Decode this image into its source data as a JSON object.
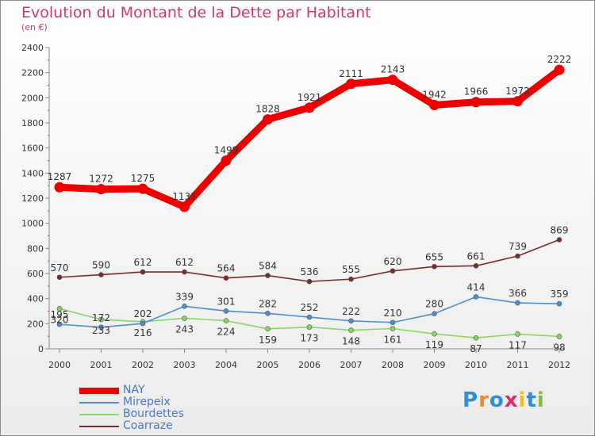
{
  "title": "Evolution du Montant de la Dette par Habitant",
  "subtitle": "(en €)",
  "chart_data": {
    "type": "line",
    "title": "Evolution du Montant de la Dette par Habitant",
    "ylabel": "(en €)",
    "xlabel": "",
    "ylim": [
      0,
      2400
    ],
    "yticks": [
      0,
      200,
      400,
      600,
      800,
      1000,
      1200,
      1400,
      1600,
      1800,
      2000,
      2200,
      2400
    ],
    "categories": [
      "2000",
      "2001",
      "2002",
      "2003",
      "2004",
      "2005",
      "2006",
      "2007",
      "2008",
      "2009",
      "2010",
      "2011",
      "2012"
    ],
    "grid": false,
    "legend_position": "bottom-left",
    "series": [
      {
        "name": "NAY",
        "color": "#ee0000",
        "values": [
          1287,
          1272,
          1275,
          1131,
          1499,
          1828,
          1921,
          2111,
          2143,
          1942,
          1966,
          1972,
          2222
        ]
      },
      {
        "name": "Mirepeix",
        "color": "#4f8fd0",
        "values": [
          195,
          172,
          202,
          339,
          301,
          282,
          252,
          222,
          210,
          280,
          414,
          366,
          359
        ]
      },
      {
        "name": "Bourdettes",
        "color": "#88d860",
        "values": [
          320,
          233,
          216,
          243,
          224,
          159,
          173,
          148,
          161,
          119,
          87,
          117,
          98
        ]
      },
      {
        "name": "Coarraze",
        "color": "#7a2a2a",
        "values": [
          570,
          590,
          612,
          612,
          564,
          584,
          536,
          555,
          620,
          655,
          661,
          739,
          869
        ]
      }
    ]
  },
  "legend": [
    {
      "name": "NAY",
      "color": "#ee0000"
    },
    {
      "name": "Mirepeix",
      "color": "#4f8fd0"
    },
    {
      "name": "Bourdettes",
      "color": "#88d860"
    },
    {
      "name": "Coarraze",
      "color": "#7a2a2a"
    }
  ],
  "logo": {
    "letters": [
      "P",
      "r",
      "o",
      "x",
      "i",
      "t",
      "i"
    ],
    "colors": [
      "#2e8fd6",
      "#f08a1c",
      "#2e8fd6",
      "#e02a6a",
      "#f0c020",
      "#2e8fd6",
      "#7ac23a"
    ]
  }
}
